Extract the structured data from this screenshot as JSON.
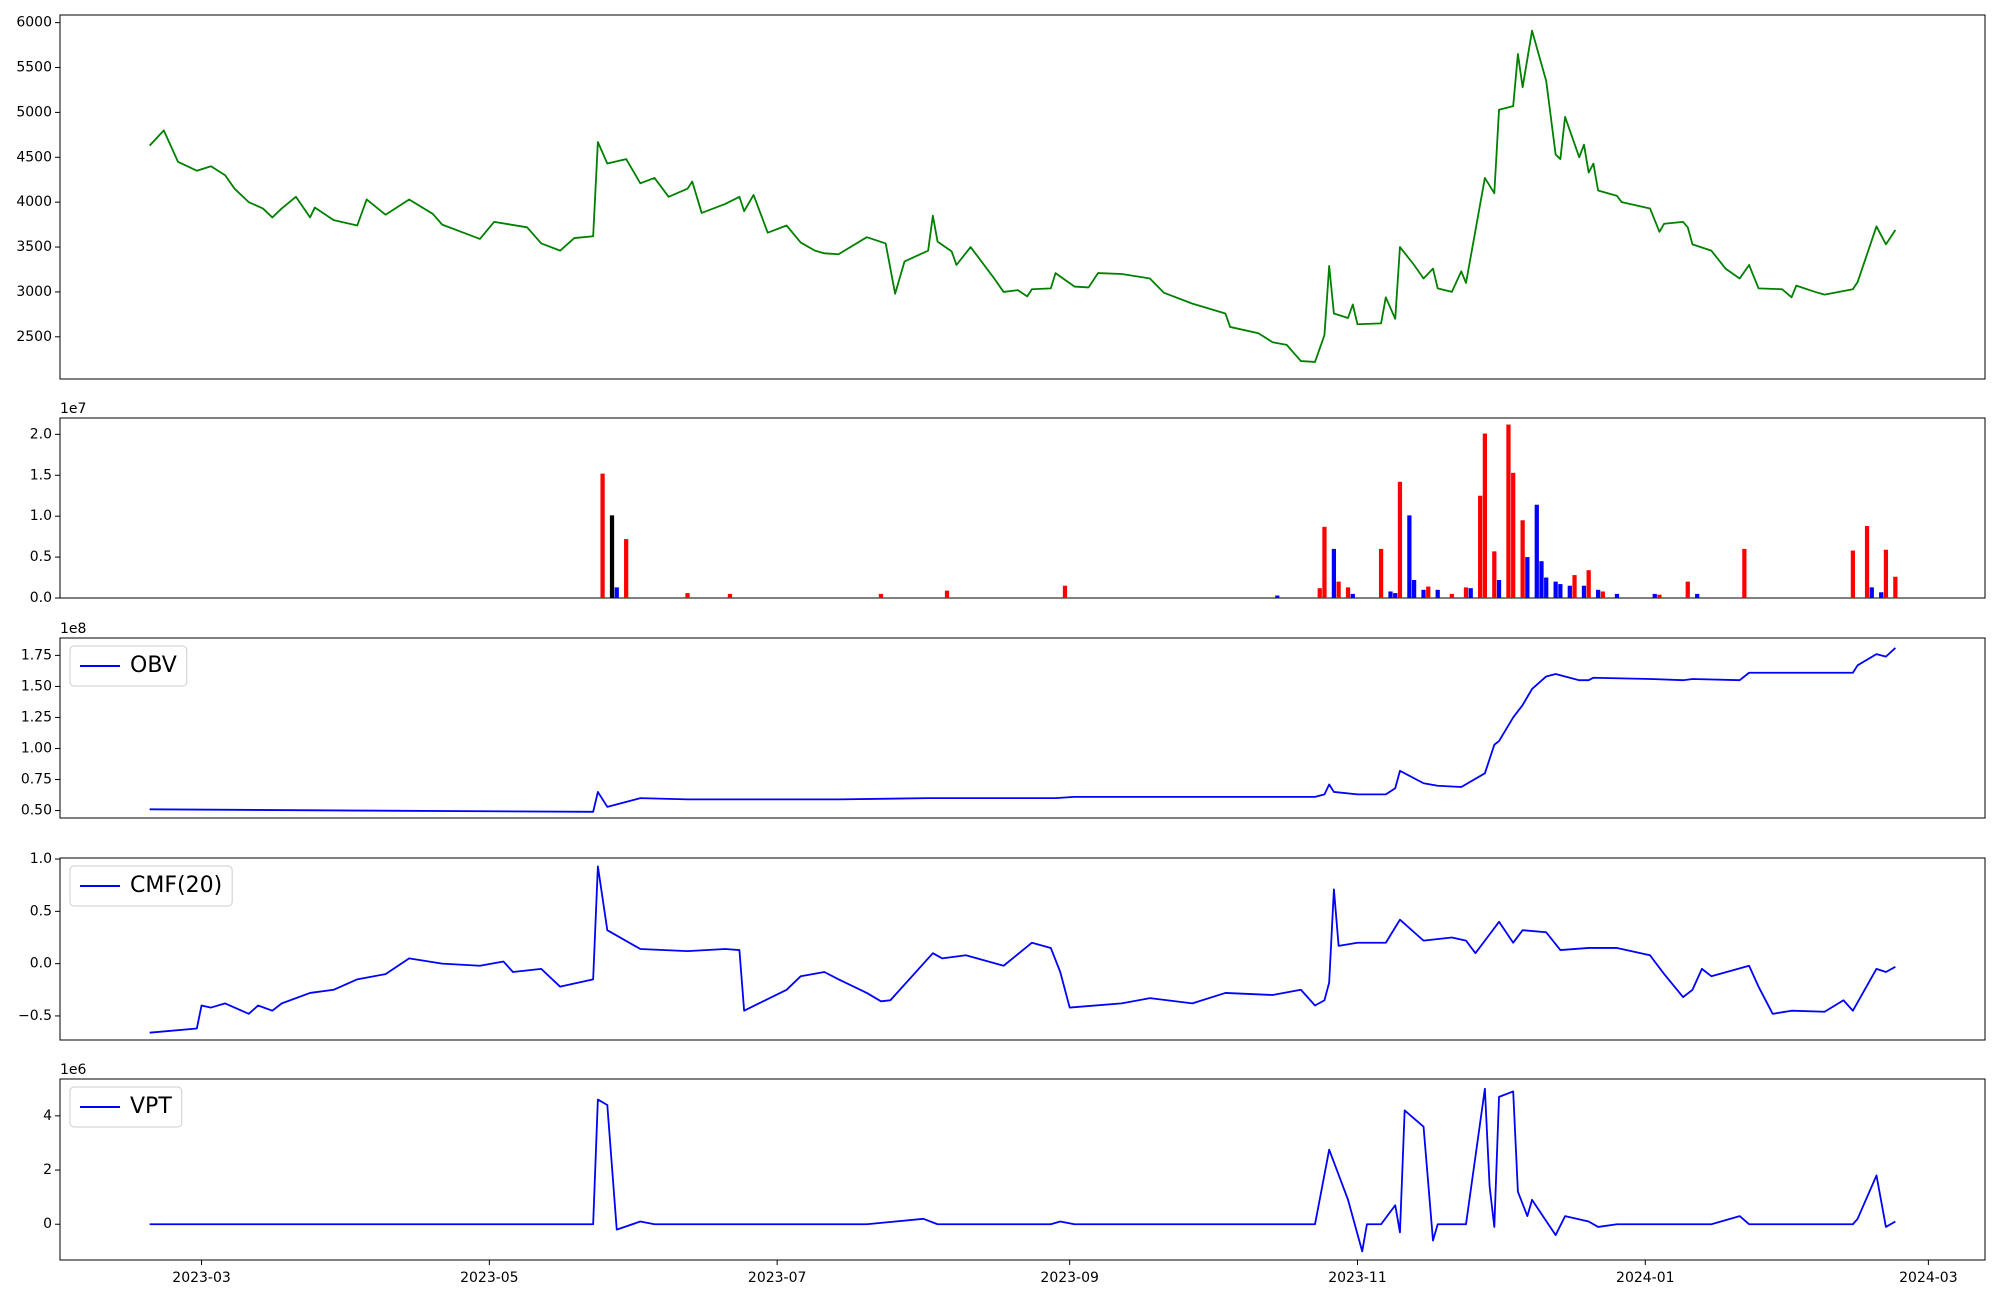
{
  "chart_data": [
    {
      "type": "line",
      "color": "#008000",
      "legend": "upper left",
      "xlim": [
        "2023-01-30",
        "2024-03-13"
      ],
      "ylim": [
        2030,
        6085
      ],
      "yticks": [
        2500,
        3000,
        3500,
        4000,
        4500,
        5000,
        5500,
        6000
      ],
      "x": [
        "2023-02-18",
        "2023-02-21",
        "2023-02-24",
        "2023-02-28",
        "2023-03-03",
        "2023-03-06",
        "2023-03-08",
        "2023-03-11",
        "2023-03-14",
        "2023-03-16",
        "2023-03-18",
        "2023-03-21",
        "2023-03-24",
        "2023-03-25",
        "2023-03-29",
        "2023-04-03",
        "2023-04-05",
        "2023-04-09",
        "2023-04-14",
        "2023-04-19",
        "2023-04-21",
        "2023-04-26",
        "2023-04-29",
        "2023-05-02",
        "2023-05-09",
        "2023-05-12",
        "2023-05-16",
        "2023-05-19",
        "2023-05-23",
        "2023-05-24",
        "2023-05-26",
        "2023-05-30",
        "2023-06-02",
        "2023-06-05",
        "2023-06-08",
        "2023-06-12",
        "2023-06-13",
        "2023-06-15",
        "2023-06-20",
        "2023-06-23",
        "2023-06-24",
        "2023-06-26",
        "2023-06-29",
        "2023-07-03",
        "2023-07-06",
        "2023-07-09",
        "2023-07-11",
        "2023-07-14",
        "2023-07-20",
        "2023-07-24",
        "2023-07-26",
        "2023-07-28",
        "2023-08-02",
        "2023-08-03",
        "2023-08-04",
        "2023-08-07",
        "2023-08-08",
        "2023-08-11",
        "2023-08-16",
        "2023-08-18",
        "2023-08-21",
        "2023-08-23",
        "2023-08-24",
        "2023-08-28",
        "2023-08-29",
        "2023-09-02",
        "2023-09-05",
        "2023-09-07",
        "2023-09-12",
        "2023-09-18",
        "2023-09-21",
        "2023-09-27",
        "2023-10-04",
        "2023-10-05",
        "2023-10-11",
        "2023-10-14",
        "2023-10-17",
        "2023-10-20",
        "2023-10-23",
        "2023-10-25",
        "2023-10-26",
        "2023-10-27",
        "2023-10-30",
        "2023-10-31",
        "2023-11-01",
        "2023-11-06",
        "2023-11-07",
        "2023-11-09",
        "2023-11-10",
        "2023-11-13",
        "2023-11-15",
        "2023-11-17",
        "2023-11-18",
        "2023-11-21",
        "2023-11-23",
        "2023-11-24",
        "2023-11-28",
        "2023-11-30",
        "2023-12-01",
        "2023-12-04",
        "2023-12-05",
        "2023-12-06",
        "2023-12-08",
        "2023-12-11",
        "2023-12-13",
        "2023-12-14",
        "2023-12-15",
        "2023-12-18",
        "2023-12-19",
        "2023-12-20",
        "2023-12-21",
        "2023-12-22",
        "2023-12-26",
        "2023-12-27",
        "2024-01-02",
        "2024-01-04",
        "2024-01-05",
        "2024-01-09",
        "2024-01-10",
        "2024-01-11",
        "2024-01-15",
        "2024-01-18",
        "2024-01-21",
        "2024-01-23",
        "2024-01-25",
        "2024-01-30",
        "2024-02-01",
        "2024-02-02",
        "2024-02-06",
        "2024-02-08",
        "2024-02-14",
        "2024-02-15",
        "2024-02-19",
        "2024-02-21",
        "2024-02-23"
      ],
      "values": [
        4630,
        4800,
        4450,
        4350,
        4400,
        4300,
        4150,
        4000,
        3930,
        3830,
        3930,
        4060,
        3830,
        3940,
        3800,
        3740,
        4030,
        3860,
        4030,
        3870,
        3750,
        3650,
        3590,
        3780,
        3720,
        3540,
        3460,
        3600,
        3620,
        4670,
        4430,
        4480,
        4210,
        4270,
        4060,
        4150,
        4230,
        3880,
        3980,
        4060,
        3900,
        4080,
        3660,
        3740,
        3550,
        3460,
        3430,
        3420,
        3610,
        3540,
        2980,
        3340,
        3460,
        3850,
        3560,
        3450,
        3300,
        3500,
        3150,
        3000,
        3020,
        2950,
        3030,
        3040,
        3210,
        3060,
        3050,
        3210,
        3200,
        3150,
        2990,
        2870,
        2760,
        2610,
        2540,
        2440,
        2410,
        2230,
        2220,
        2520,
        3290,
        2760,
        2710,
        2860,
        2640,
        2650,
        2940,
        2700,
        3500,
        3300,
        3150,
        3260,
        3040,
        3000,
        3230,
        3100,
        4270,
        4100,
        5030,
        5070,
        5650,
        5280,
        5910,
        5350,
        4530,
        4480,
        4950,
        4500,
        4640,
        4330,
        4430,
        4130,
        4070,
        4000,
        3930,
        3670,
        3760,
        3780,
        3720,
        3530,
        3460,
        3260,
        3150,
        3300,
        3040,
        3030,
        2940,
        3070,
        3000,
        2970,
        3030,
        3110,
        3730,
        3530,
        3690
      ]
    },
    {
      "type": "bar",
      "offset_label": "1e7",
      "xlim": [
        "2023-01-30",
        "2024-03-13"
      ],
      "ylim": [
        0,
        2.2
      ],
      "yticks": [
        {
          "value": 0,
          "label": "0.0"
        },
        0.5,
        {
          "value": 1,
          "label": "1.0"
        },
        1.5,
        {
          "value": 2,
          "label": "2.0"
        }
      ],
      "x": [
        "2023-05-25",
        "2023-05-27",
        "2023-05-28",
        "2023-05-30",
        "2023-06-12",
        "2023-06-21",
        "2023-07-23",
        "2023-08-06",
        "2023-08-31",
        "2023-10-15",
        "2023-10-24",
        "2023-10-25",
        "2023-10-27",
        "2023-10-28",
        "2023-10-30",
        "2023-10-31",
        "2023-11-06",
        "2023-11-08",
        "2023-11-09",
        "2023-11-10",
        "2023-11-12",
        "2023-11-13",
        "2023-11-15",
        "2023-11-16",
        "2023-11-18",
        "2023-11-21",
        "2023-11-24",
        "2023-11-25",
        "2023-11-27",
        "2023-11-28",
        "2023-11-30",
        "2023-12-01",
        "2023-12-03",
        "2023-12-04",
        "2023-12-06",
        "2023-12-07",
        "2023-12-09",
        "2023-12-10",
        "2023-12-11",
        "2023-12-13",
        "2023-12-14",
        "2023-12-16",
        "2023-12-17",
        "2023-12-19",
        "2023-12-20",
        "2023-12-22",
        "2023-12-23",
        "2023-12-26",
        "2024-01-03",
        "2024-01-04",
        "2024-01-10",
        "2024-01-12",
        "2024-01-22",
        "2024-02-14",
        "2024-02-17",
        "2024-02-18",
        "2024-02-20",
        "2024-02-21",
        "2024-02-23"
      ],
      "values": [
        1.52,
        1.01,
        0.13,
        0.72,
        0.06,
        0.05,
        0.05,
        0.09,
        0.15,
        0.03,
        0.12,
        0.87,
        0.6,
        0.2,
        0.13,
        0.05,
        0.6,
        0.08,
        0.06,
        1.42,
        1.01,
        0.22,
        0.1,
        0.14,
        0.1,
        0.05,
        0.13,
        0.12,
        1.25,
        2.01,
        0.57,
        0.22,
        2.12,
        1.53,
        0.95,
        0.5,
        1.14,
        0.45,
        0.25,
        0.2,
        0.17,
        0.15,
        0.28,
        0.15,
        0.34,
        0.1,
        0.08,
        0.05,
        0.05,
        0.04,
        0.2,
        0.05,
        0.6,
        0.58,
        0.88,
        0.13,
        0.07,
        0.59,
        0.26
      ],
      "colors": [
        "#ff0000",
        "#000000",
        "#0000ff",
        "#ff0000",
        "#ff0000",
        "#ff0000",
        "#ff0000",
        "#ff0000",
        "#ff0000",
        "#0000ff",
        "#ff0000",
        "#ff0000",
        "#0000ff",
        "#ff0000",
        "#ff0000",
        "#0000ff",
        "#ff0000",
        "#0000ff",
        "#0000ff",
        "#ff0000",
        "#0000ff",
        "#0000ff",
        "#0000ff",
        "#ff0000",
        "#0000ff",
        "#ff0000",
        "#ff0000",
        "#0000ff",
        "#ff0000",
        "#ff0000",
        "#ff0000",
        "#0000ff",
        "#ff0000",
        "#ff0000",
        "#ff0000",
        "#0000ff",
        "#0000ff",
        "#0000ff",
        "#0000ff",
        "#0000ff",
        "#0000ff",
        "#0000ff",
        "#ff0000",
        "#0000ff",
        "#ff0000",
        "#0000ff",
        "#ff0000",
        "#0000ff",
        "#0000ff",
        "#ff0000",
        "#ff0000",
        "#0000ff",
        "#ff0000",
        "#ff0000",
        "#ff0000",
        "#0000ff",
        "#0000ff",
        "#ff0000",
        "#ff0000"
      ]
    },
    {
      "type": "line",
      "offset_label": "1e8",
      "legend": "upper left",
      "xlim": [
        "2023-01-30",
        "2024-03-13"
      ],
      "ylim": [
        0.44,
        1.89
      ],
      "yticks": [
        {
          "value": 0.5,
          "label": "0.50"
        },
        0.75,
        {
          "value": 1,
          "label": "1.00"
        },
        1.25,
        {
          "value": 1.5,
          "label": "1.50"
        },
        1.75
      ],
      "x": [
        "2023-02-18",
        "2023-04-03",
        "2023-05-23",
        "2023-05-24",
        "2023-05-26",
        "2023-06-02",
        "2023-06-12",
        "2023-07-14",
        "2023-08-02",
        "2023-08-29",
        "2023-09-02",
        "2023-10-23",
        "2023-10-25",
        "2023-10-26",
        "2023-10-27",
        "2023-11-01",
        "2023-11-07",
        "2023-11-09",
        "2023-11-10",
        "2023-11-15",
        "2023-11-18",
        "2023-11-23",
        "2023-11-28",
        "2023-11-30",
        "2023-12-01",
        "2023-12-04",
        "2023-12-06",
        "2023-12-08",
        "2023-12-11",
        "2023-12-13",
        "2023-12-18",
        "2023-12-20",
        "2023-12-21",
        "2024-01-02",
        "2024-01-09",
        "2024-01-11",
        "2024-01-21",
        "2024-01-23",
        "2024-02-14",
        "2024-02-15",
        "2024-02-19",
        "2024-02-21",
        "2024-02-23"
      ],
      "series": [
        {
          "name": "OBV",
          "color": "#0000ff",
          "values": [
            0.51,
            0.5,
            0.49,
            0.65,
            0.53,
            0.6,
            0.59,
            0.59,
            0.6,
            0.6,
            0.61,
            0.61,
            0.63,
            0.71,
            0.65,
            0.63,
            0.63,
            0.68,
            0.82,
            0.72,
            0.7,
            0.69,
            0.8,
            1.03,
            1.06,
            1.25,
            1.35,
            1.48,
            1.58,
            1.6,
            1.55,
            1.55,
            1.57,
            1.56,
            1.55,
            1.56,
            1.55,
            1.61,
            1.61,
            1.67,
            1.76,
            1.74,
            1.81
          ]
        }
      ]
    },
    {
      "type": "line",
      "legend": "upper left",
      "xlim": [
        "2023-01-30",
        "2024-03-13"
      ],
      "ylim": [
        -0.73,
        1.01
      ],
      "yticks": [
        {
          "value": -0.5,
          "label": "−0.5"
        },
        {
          "value": 0,
          "label": "0.0"
        },
        0.5,
        {
          "value": 1,
          "label": "1.0"
        }
      ],
      "x": [
        "2023-02-18",
        "2023-02-28",
        "2023-03-01",
        "2023-03-03",
        "2023-03-06",
        "2023-03-11",
        "2023-03-13",
        "2023-03-16",
        "2023-03-18",
        "2023-03-24",
        "2023-03-29",
        "2023-04-03",
        "2023-04-09",
        "2023-04-14",
        "2023-04-21",
        "2023-04-29",
        "2023-05-04",
        "2023-05-06",
        "2023-05-12",
        "2023-05-16",
        "2023-05-23",
        "2023-05-24",
        "2023-05-26",
        "2023-06-02",
        "2023-06-12",
        "2023-06-20",
        "2023-06-23",
        "2023-06-24",
        "2023-07-03",
        "2023-07-06",
        "2023-07-11",
        "2023-07-14",
        "2023-07-20",
        "2023-07-23",
        "2023-07-25",
        "2023-08-03",
        "2023-08-05",
        "2023-08-10",
        "2023-08-18",
        "2023-08-24",
        "2023-08-28",
        "2023-08-30",
        "2023-09-01",
        "2023-09-12",
        "2023-09-18",
        "2023-09-27",
        "2023-10-04",
        "2023-10-14",
        "2023-10-20",
        "2023-10-23",
        "2023-10-25",
        "2023-10-26",
        "2023-10-27",
        "2023-10-28",
        "2023-11-01",
        "2023-11-07",
        "2023-11-10",
        "2023-11-15",
        "2023-11-21",
        "2023-11-24",
        "2023-11-26",
        "2023-11-29",
        "2023-12-01",
        "2023-12-04",
        "2023-12-06",
        "2023-12-11",
        "2023-12-14",
        "2023-12-20",
        "2023-12-26",
        "2024-01-02",
        "2024-01-05",
        "2024-01-09",
        "2024-01-11",
        "2024-01-13",
        "2024-01-15",
        "2024-01-23",
        "2024-01-25",
        "2024-01-28",
        "2024-02-01",
        "2024-02-08",
        "2024-02-12",
        "2024-02-14",
        "2024-02-19",
        "2024-02-21",
        "2024-02-23"
      ],
      "series": [
        {
          "name": "CMF(20)",
          "color": "#0000ff",
          "values": [
            -0.66,
            -0.62,
            -0.4,
            -0.42,
            -0.38,
            -0.48,
            -0.4,
            -0.45,
            -0.38,
            -0.28,
            -0.25,
            -0.15,
            -0.1,
            0.05,
            0.0,
            -0.02,
            0.02,
            -0.08,
            -0.05,
            -0.22,
            -0.15,
            0.93,
            0.32,
            0.14,
            0.12,
            0.14,
            0.13,
            -0.45,
            -0.25,
            -0.12,
            -0.08,
            -0.15,
            -0.28,
            -0.36,
            -0.35,
            0.1,
            0.05,
            0.08,
            -0.02,
            0.2,
            0.15,
            -0.08,
            -0.42,
            -0.38,
            -0.33,
            -0.38,
            -0.28,
            -0.3,
            -0.25,
            -0.4,
            -0.35,
            -0.18,
            0.71,
            0.17,
            0.2,
            0.2,
            0.42,
            0.22,
            0.25,
            0.22,
            0.1,
            0.28,
            0.4,
            0.2,
            0.32,
            0.3,
            0.13,
            0.15,
            0.15,
            0.08,
            -0.1,
            -0.32,
            -0.25,
            -0.05,
            -0.12,
            -0.02,
            -0.22,
            -0.48,
            -0.45,
            -0.46,
            -0.35,
            -0.45,
            -0.05,
            -0.08,
            -0.03
          ]
        }
      ]
    },
    {
      "type": "line",
      "offset_label": "1e6",
      "legend": "upper left",
      "xlim": [
        "2023-01-30",
        "2024-03-13"
      ],
      "ylim": [
        -1.32,
        5.36
      ],
      "yticks": [
        0,
        2,
        4
      ],
      "xticks": [
        {
          "value": "2023-03-01",
          "label": "2023-03"
        },
        {
          "value": "2023-05-01",
          "label": "2023-05"
        },
        {
          "value": "2023-07-01",
          "label": "2023-07"
        },
        {
          "value": "2023-09-01",
          "label": "2023-09"
        },
        {
          "value": "2023-11-01",
          "label": "2023-11"
        },
        {
          "value": "2024-01-01",
          "label": "2024-01"
        },
        {
          "value": "2024-03-01",
          "label": "2024-03"
        }
      ],
      "x": [
        "2023-02-18",
        "2023-05-23",
        "2023-05-24",
        "2023-05-26",
        "2023-05-28",
        "2023-06-02",
        "2023-06-05",
        "2023-07-20",
        "2023-08-01",
        "2023-08-04",
        "2023-08-28",
        "2023-08-30",
        "2023-09-02",
        "2023-10-23",
        "2023-10-26",
        "2023-10-30",
        "2023-11-02",
        "2023-11-03",
        "2023-11-06",
        "2023-11-09",
        "2023-11-10",
        "2023-11-11",
        "2023-11-15",
        "2023-11-17",
        "2023-11-18",
        "2023-11-24",
        "2023-11-28",
        "2023-11-29",
        "2023-11-30",
        "2023-12-01",
        "2023-12-04",
        "2023-12-05",
        "2023-12-07",
        "2023-12-08",
        "2023-12-13",
        "2023-12-15",
        "2023-12-20",
        "2023-12-22",
        "2023-12-26",
        "2024-01-15",
        "2024-01-21",
        "2024-01-23",
        "2024-02-14",
        "2024-02-15",
        "2024-02-19",
        "2024-02-21",
        "2024-02-23"
      ],
      "series": [
        {
          "name": "VPT",
          "color": "#0000ff",
          "values": [
            0.0,
            0.0,
            4.6,
            4.4,
            -0.2,
            0.1,
            0.0,
            0.0,
            0.2,
            0.0,
            0.0,
            0.1,
            0.0,
            0.0,
            2.75,
            0.9,
            -1.0,
            0.0,
            0.0,
            0.7,
            -0.3,
            4.2,
            3.6,
            -0.6,
            0.0,
            0.0,
            5.0,
            1.4,
            -0.1,
            4.7,
            4.9,
            1.2,
            0.3,
            0.9,
            -0.4,
            0.3,
            0.1,
            -0.1,
            0.0,
            0.0,
            0.3,
            0.0,
            0.0,
            0.2,
            1.8,
            -0.1,
            0.1
          ]
        }
      ]
    }
  ]
}
